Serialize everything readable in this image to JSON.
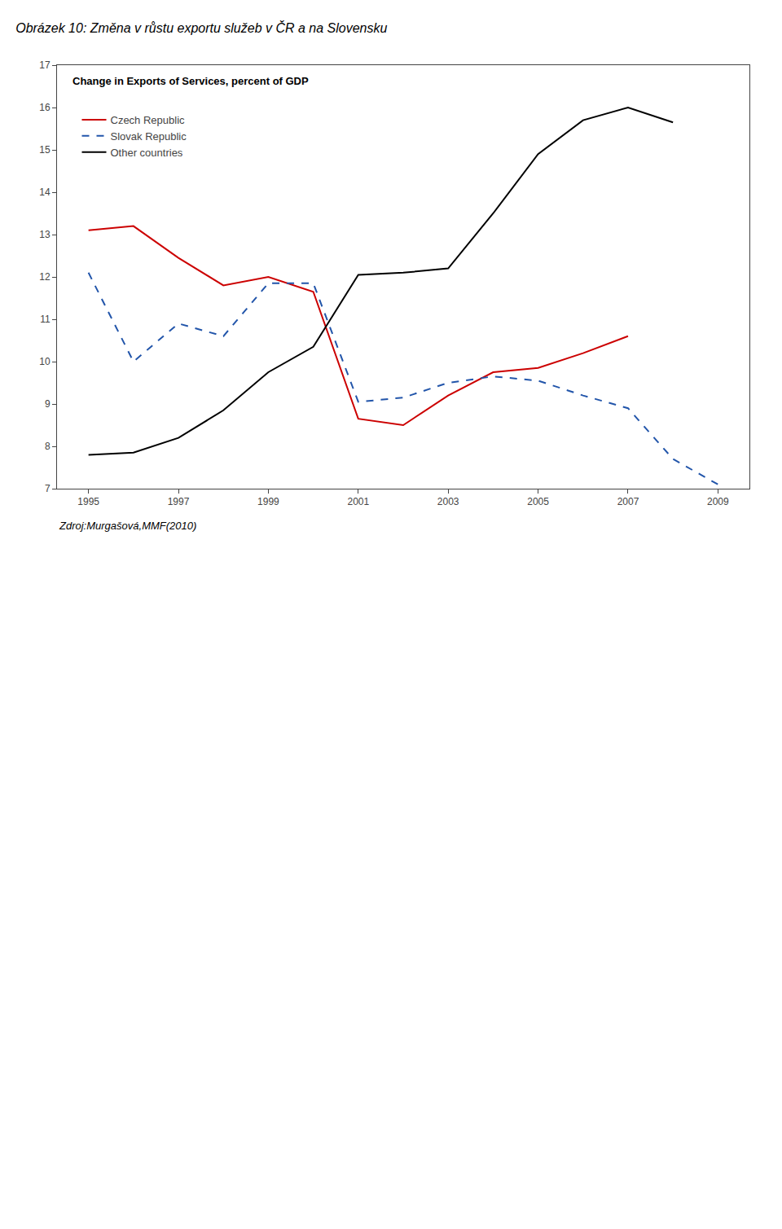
{
  "chart_data": {
    "type": "line",
    "title": "Obrázek 10: Změna v růstu exportu služeb v ČR a na Slovensku",
    "subtitle": "Change in Exports of Services, percent of GDP",
    "annotations": [
      "Zdroj:Murgašová,MMF(2010)"
    ],
    "x": [
      1995,
      1996,
      1997,
      1998,
      1999,
      2000,
      2001,
      2002,
      2003,
      2004,
      2005,
      2006,
      2007,
      2008,
      2009
    ],
    "series": [
      {
        "name": "Czech Republic",
        "color": "#cc0000",
        "line_style": "solid",
        "values": [
          13.1,
          13.2,
          12.45,
          11.8,
          12.0,
          11.65,
          8.65,
          8.5,
          9.2,
          9.75,
          9.85,
          10.2,
          10.6,
          null,
          null
        ]
      },
      {
        "name": "Slovak Republic",
        "color": "#2255aa",
        "line_style": "dashed",
        "values": [
          12.1,
          10.0,
          10.9,
          10.6,
          11.85,
          11.85,
          9.05,
          9.15,
          9.5,
          9.65,
          9.55,
          9.2,
          8.9,
          7.7,
          7.1
        ]
      },
      {
        "name": "Other countries",
        "color": "#000000",
        "line_style": "solid",
        "values": [
          7.8,
          7.85,
          8.2,
          8.85,
          9.75,
          10.35,
          12.05,
          12.1,
          12.2,
          13.5,
          14.9,
          15.7,
          16.0,
          15.65,
          null
        ]
      }
    ],
    "xlim": [
      1994.3,
      2009.7
    ],
    "xticks": [
      1995,
      1997,
      1999,
      2001,
      2003,
      2005,
      2007,
      2009
    ],
    "ylim": [
      7,
      17
    ],
    "yticks": [
      7,
      8,
      9,
      10,
      11,
      12,
      13,
      14,
      15,
      16,
      17
    ],
    "grid": false,
    "legend": "upper left"
  }
}
